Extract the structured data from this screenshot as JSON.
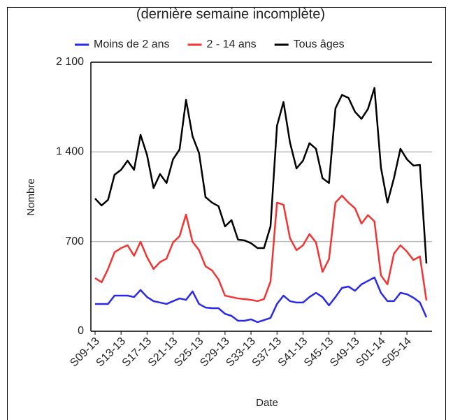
{
  "chart_data": {
    "type": "line",
    "title": "(dernière semaine incomplète)",
    "x_label": "Date",
    "y_label": "Nombre",
    "categories": [
      "S09-13",
      null,
      null,
      null,
      "S13-13",
      null,
      null,
      null,
      "S17-13",
      null,
      null,
      null,
      "S21-13",
      null,
      null,
      null,
      "S25-13",
      null,
      null,
      null,
      "S29-13",
      null,
      null,
      null,
      "S33-13",
      null,
      null,
      null,
      "S37-13",
      null,
      null,
      null,
      "S41-13",
      null,
      null,
      null,
      "S45-13",
      null,
      null,
      null,
      "S49-13",
      null,
      null,
      null,
      "S01-14",
      null,
      null,
      null,
      "S05-14",
      null,
      null,
      null
    ],
    "series": [
      {
        "name": "Moins de 2 ans",
        "color": "#2a2ae6",
        "values": [
          213,
          213,
          213,
          278,
          278,
          278,
          267,
          322,
          267,
          235,
          224,
          213,
          235,
          256,
          245,
          311,
          213,
          185,
          180,
          180,
          136,
          120,
          82,
          82,
          93,
          71,
          87,
          104,
          213,
          278,
          235,
          224,
          224,
          267,
          300,
          267,
          202,
          267,
          338,
          349,
          316,
          366,
          393,
          420,
          300,
          235,
          235,
          300,
          289,
          262,
          224,
          109
        ]
      },
      {
        "name": "2 - 14 ans",
        "color": "#f03535",
        "values": [
          415,
          382,
          486,
          617,
          649,
          671,
          589,
          698,
          578,
          486,
          540,
          567,
          693,
          742,
          911,
          698,
          633,
          507,
          475,
          404,
          278,
          267,
          256,
          251,
          245,
          235,
          251,
          387,
          1004,
          987,
          726,
          633,
          671,
          758,
          693,
          464,
          562,
          1004,
          1058,
          1004,
          960,
          840,
          906,
          857,
          436,
          366,
          606,
          671,
          622,
          556,
          584,
          240
        ]
      },
      {
        "name": "Tous âges",
        "color": "#000000",
        "values": [
          1036,
          982,
          1026,
          1222,
          1260,
          1331,
          1260,
          1533,
          1375,
          1118,
          1227,
          1157,
          1342,
          1418,
          1806,
          1522,
          1391,
          1047,
          1004,
          976,
          818,
          867,
          715,
          709,
          687,
          649,
          649,
          818,
          1604,
          1789,
          1473,
          1271,
          1331,
          1468,
          1424,
          1195,
          1157,
          1740,
          1844,
          1822,
          1713,
          1658,
          1735,
          1899,
          1277,
          1004,
          1195,
          1424,
          1342,
          1293,
          1298,
          529
        ]
      }
    ],
    "ylim": [
      0,
      2100
    ],
    "yticks": [
      0,
      700,
      {
        "value": 1400,
        "label": "1 400"
      },
      {
        "value": 2100,
        "label": "2 100"
      }
    ],
    "grid": true,
    "legend": "top"
  }
}
